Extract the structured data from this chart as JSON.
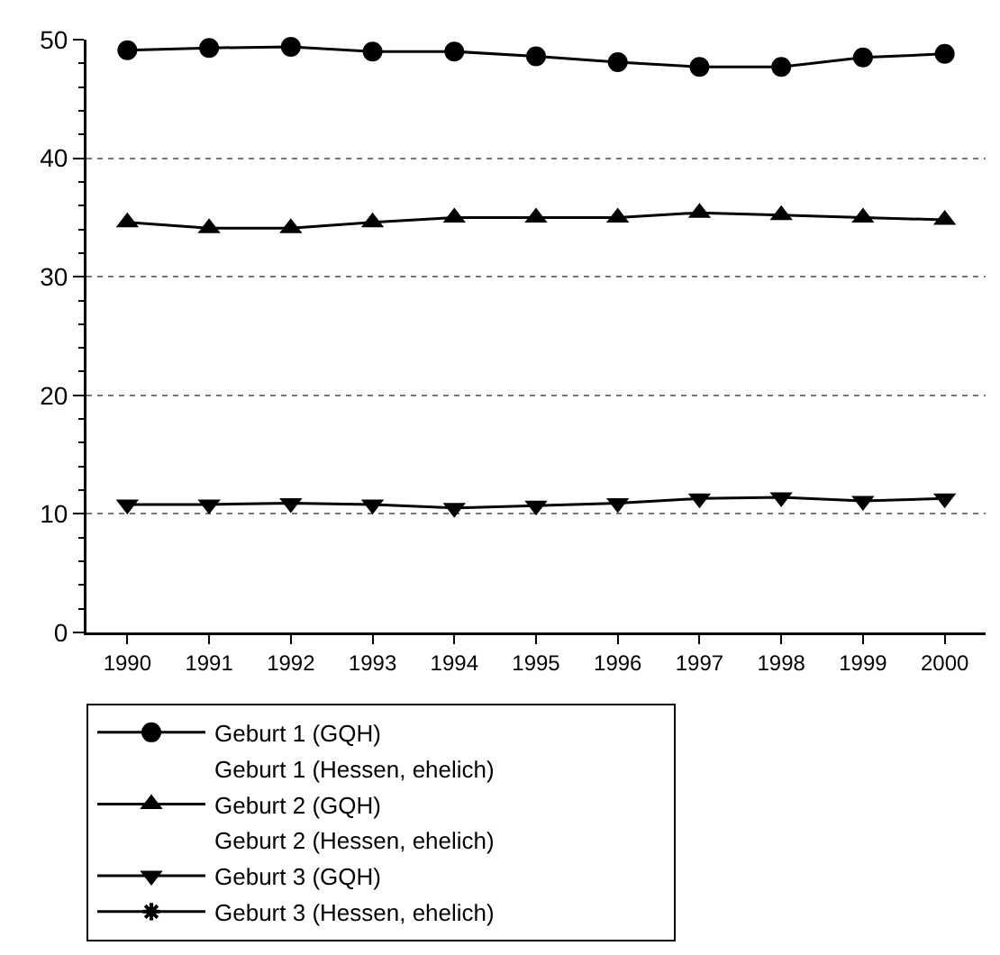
{
  "chart_data": {
    "type": "line",
    "categories": [
      "1990",
      "1991",
      "1992",
      "1993",
      "1994",
      "1995",
      "1996",
      "1997",
      "1998",
      "1999",
      "2000"
    ],
    "series": [
      {
        "name": "Geburt 1 (GQH)",
        "color": "#000000",
        "marker": "circle",
        "values": [
          49.1,
          49.3,
          49.4,
          49.0,
          49.0,
          48.6,
          48.1,
          47.7,
          47.7,
          48.5,
          48.8
        ]
      },
      {
        "name": "Geburt 2 (GQH)",
        "color": "#000000",
        "marker": "triangle",
        "values": [
          34.6,
          34.1,
          34.1,
          34.6,
          35.0,
          35.0,
          35.0,
          35.4,
          35.2,
          35.0,
          34.8
        ]
      },
      {
        "name": "Geburt 3 (GQH)",
        "color": "#000000",
        "marker": "triangle-down",
        "values": [
          10.8,
          10.8,
          10.9,
          10.8,
          10.5,
          10.7,
          10.9,
          11.3,
          11.4,
          11.1,
          11.3
        ]
      },
      {
        "name": "Geburt 1 (Hessen, ehelich)",
        "marker": "none",
        "values": [
          null,
          null,
          null,
          null,
          null,
          null,
          null,
          null,
          null,
          null,
          null
        ]
      },
      {
        "name": "Geburt 2 (Hessen, ehelich)",
        "marker": "none",
        "values": [
          null,
          null,
          null,
          null,
          null,
          null,
          null,
          null,
          null,
          null,
          null
        ]
      },
      {
        "name": "Geburt 3 (Hessen, ehelich)",
        "color": "#000000",
        "marker": "star",
        "values": [
          null,
          null,
          null,
          null,
          null,
          null,
          null,
          null,
          null,
          null,
          null
        ]
      }
    ],
    "ylim": [
      0,
      50
    ],
    "yticks": [
      0,
      10,
      20,
      30,
      40,
      50
    ],
    "grid": "y",
    "legend": "bottom"
  }
}
